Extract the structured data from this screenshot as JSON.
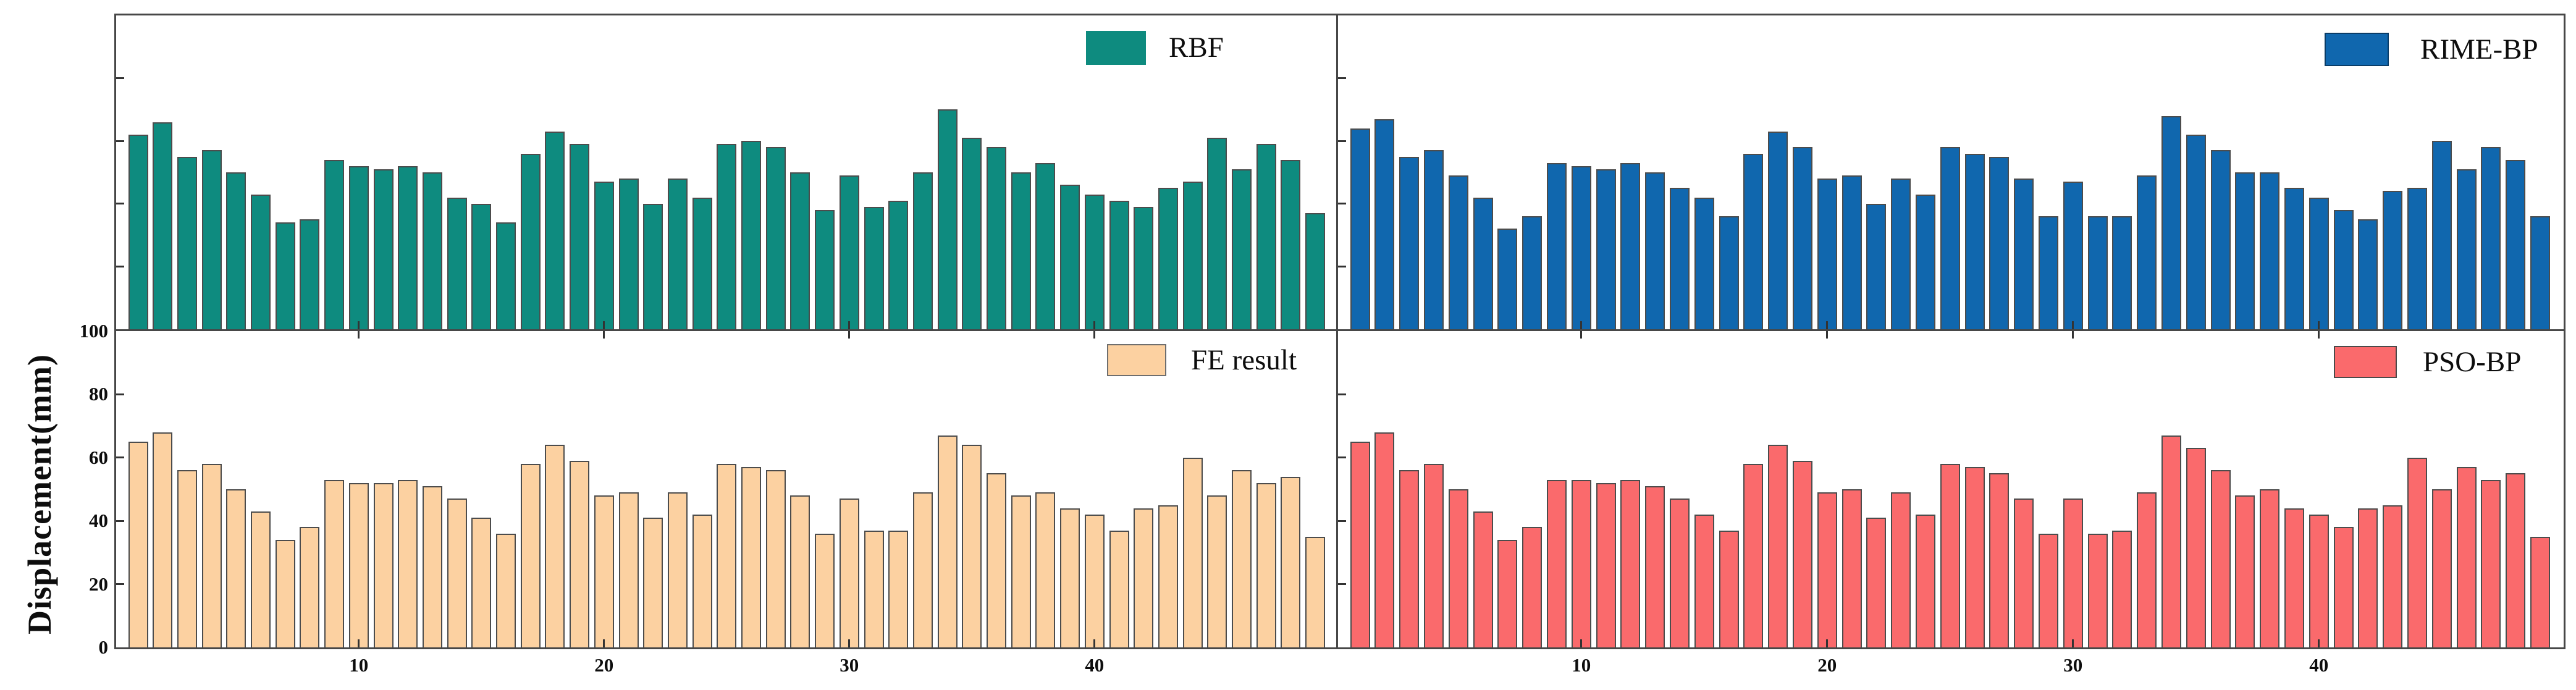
{
  "figure": {
    "ylabel": "Displacement(mm)"
  },
  "axes": {
    "y_tick_labels": [
      "0",
      "20",
      "40",
      "60",
      "80",
      "100"
    ],
    "y_tick_values": [
      0,
      20,
      40,
      60,
      80,
      100
    ],
    "y_minor_tick_values": [
      20,
      40,
      60,
      80
    ],
    "x_tick_labels": [
      "10",
      "20",
      "30",
      "40"
    ],
    "x_tick_bar_indices": [
      10,
      20,
      30,
      40
    ],
    "ylim": [
      0,
      100
    ],
    "grid": "off"
  },
  "colors": {
    "rbf": "#0e8b7f",
    "rime_bp": "#1067ae",
    "fe_result": "#fcd1a1",
    "pso_bp": "#fa6a6c",
    "bar_edge": "#4c4c4c",
    "spine": "#474747",
    "text": "#0d0d0d"
  },
  "chart_data": [
    {
      "type": "bar",
      "panel_id": "top-left",
      "legend": "RBF",
      "legend_position": "upper right",
      "color": "#0e8b7f",
      "x": "measurement point index 1-49",
      "ylim": [
        0,
        100
      ],
      "values": [
        62,
        66,
        55,
        57,
        50,
        43,
        34,
        35,
        54,
        52,
        51,
        52,
        50,
        42,
        40,
        34,
        56,
        63,
        59,
        47,
        48,
        40,
        48,
        42,
        59,
        60,
        58,
        50,
        38,
        49,
        39,
        41,
        50,
        70,
        61,
        58,
        50,
        53,
        46,
        43,
        41,
        39,
        45,
        47,
        61,
        51,
        59,
        54,
        37
      ]
    },
    {
      "type": "bar",
      "panel_id": "top-right",
      "legend": "RIME-BP",
      "legend_position": "upper right",
      "color": "#1067ae",
      "x": "measurement point index 1-49",
      "ylim": [
        0,
        100
      ],
      "values": [
        64,
        67,
        55,
        57,
        49,
        42,
        32,
        36,
        53,
        52,
        51,
        53,
        50,
        45,
        42,
        36,
        56,
        63,
        58,
        48,
        49,
        40,
        48,
        43,
        58,
        56,
        55,
        48,
        36,
        47,
        36,
        36,
        49,
        68,
        62,
        57,
        50,
        50,
        45,
        42,
        38,
        35,
        44,
        45,
        60,
        51,
        58,
        54,
        36
      ]
    },
    {
      "type": "bar",
      "panel_id": "bottom-left",
      "legend": "FE result",
      "legend_position": "upper right",
      "color": "#fcd1a1",
      "x": "measurement point index 1-49",
      "ylim": [
        0,
        100
      ],
      "values": [
        65,
        68,
        56,
        58,
        50,
        43,
        34,
        38,
        53,
        52,
        52,
        53,
        51,
        47,
        41,
        36,
        58,
        64,
        59,
        48,
        49,
        41,
        49,
        42,
        58,
        57,
        56,
        48,
        36,
        47,
        37,
        37,
        49,
        67,
        64,
        55,
        48,
        49,
        44,
        42,
        37,
        44,
        45,
        60,
        48,
        56,
        52,
        54,
        35
      ]
    },
    {
      "type": "bar",
      "panel_id": "bottom-right",
      "legend": "PSO-BP",
      "legend_position": "upper right",
      "color": "#fa6a6c",
      "x": "measurement point index 1-49",
      "ylim": [
        0,
        100
      ],
      "values": [
        65,
        68,
        56,
        58,
        50,
        43,
        34,
        38,
        53,
        53,
        52,
        53,
        51,
        47,
        42,
        37,
        58,
        64,
        59,
        49,
        50,
        41,
        49,
        42,
        58,
        57,
        55,
        47,
        36,
        47,
        36,
        37,
        49,
        67,
        63,
        56,
        48,
        50,
        44,
        42,
        38,
        44,
        45,
        60,
        50,
        57,
        53,
        55,
        35
      ]
    }
  ]
}
